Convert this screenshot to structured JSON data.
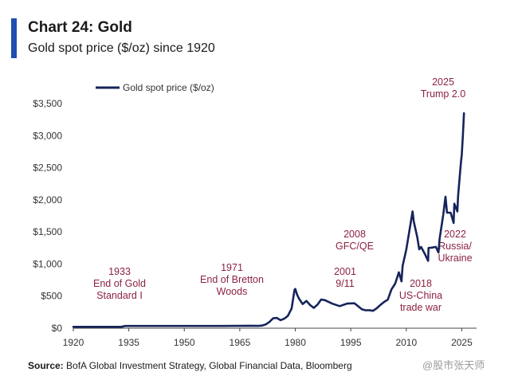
{
  "header": {
    "title": "Chart 24: Gold",
    "subtitle": "Gold spot price ($/oz) since 1920"
  },
  "footer": {
    "source_label": "Source:",
    "source_text": " BofA Global Investment Strategy, Global Financial Data, Bloomberg"
  },
  "watermark": "@股市张天师",
  "colors": {
    "accent": "#1f4fb0",
    "line": "#16245c",
    "annotation": "#8b2240"
  },
  "chart_data": {
    "type": "line",
    "title": "Chart 24: Gold",
    "subtitle": "Gold spot price ($/oz) since 1920",
    "xlabel": "",
    "ylabel": "",
    "xlim": [
      1920,
      2029
    ],
    "ylim": [
      0,
      3650
    ],
    "x_ticks": [
      1920,
      1935,
      1950,
      1965,
      1980,
      1995,
      2010,
      2025
    ],
    "y_ticks": [
      0,
      500,
      1000,
      1500,
      2000,
      2500,
      3000,
      3500
    ],
    "y_tick_labels": [
      "$0",
      "$500",
      "$1,000",
      "$1,500",
      "$2,000",
      "$2,500",
      "$3,000",
      "$3,500"
    ],
    "grid": false,
    "legend": {
      "position": "top-left",
      "entries": [
        "Gold spot price ($/oz)"
      ]
    },
    "series": [
      {
        "name": "Gold spot price ($/oz)",
        "x": [
          1920,
          1933,
          1934,
          1950,
          1960,
          1968,
          1970,
          1971,
          1972,
          1973,
          1974,
          1975,
          1976,
          1977,
          1978,
          1979,
          1979.8,
          1980,
          1980.5,
          1981,
          1982,
          1983,
          1984,
          1985,
          1986,
          1987,
          1988,
          1990,
          1992,
          1994,
          1996,
          1998,
          1999,
          2000,
          2001,
          2002,
          2003,
          2004,
          2005,
          2006,
          2007,
          2008,
          2008.7,
          2009,
          2010,
          2011,
          2011.7,
          2012,
          2013,
          2013.5,
          2014,
          2015,
          2015.9,
          2016,
          2017,
          2018,
          2018.7,
          2019,
          2020,
          2020.6,
          2021,
          2022,
          2022.8,
          2023,
          2023.8,
          2024,
          2024.5,
          2024.8,
          2025,
          2025.3,
          2025.6
        ],
        "y": [
          20.7,
          20.7,
          35,
          35,
          35,
          39,
          36,
          41,
          58,
          97,
          154,
          160,
          125,
          148,
          193,
          307,
          600,
          612,
          520,
          460,
          376,
          424,
          361,
          317,
          368,
          447,
          437,
          383,
          344,
          384,
          388,
          294,
          279,
          280,
          271,
          310,
          363,
          409,
          444,
          604,
          695,
          872,
          730,
          972,
          1225,
          1572,
          1820,
          1669,
          1411,
          1230,
          1266,
          1160,
          1050,
          1250,
          1257,
          1268,
          1180,
          1393,
          1770,
          2050,
          1800,
          1800,
          1640,
          1940,
          1820,
          2060,
          2400,
          2600,
          2700,
          3000,
          3350
        ]
      }
    ],
    "annotations": [
      {
        "x": 1933,
        "lines": [
          "1933",
          "End of Gold",
          "Standard I"
        ]
      },
      {
        "x": 1971,
        "lines": [
          "1971",
          "End of Bretton",
          "Woods"
        ]
      },
      {
        "x": 2001,
        "lines": [
          "2001",
          "9/11"
        ]
      },
      {
        "x": 2008,
        "lines": [
          "2008",
          "GFC/QE"
        ]
      },
      {
        "x": 2018,
        "lines": [
          "2018",
          "US-China",
          "trade war"
        ]
      },
      {
        "x": 2022,
        "lines": [
          "2022",
          "Russia/",
          "Ukraine"
        ]
      },
      {
        "x": 2025,
        "lines": [
          "2025",
          "Trump 2.0"
        ]
      }
    ]
  }
}
